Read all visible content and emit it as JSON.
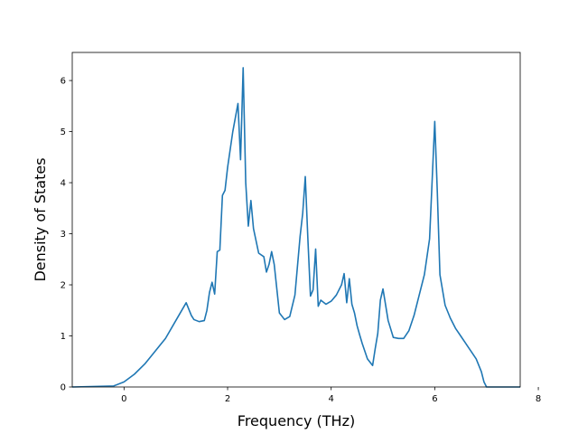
{
  "chart_data": {
    "type": "line",
    "title": "",
    "xlabel": "Frequency (THz)",
    "ylabel": "Density of States",
    "xlim": [
      -1.0,
      7.65
    ],
    "ylim": [
      0,
      6.55
    ],
    "xticks": [
      0,
      2,
      4,
      6,
      8
    ],
    "yticks": [
      0,
      1,
      2,
      3,
      4,
      5,
      6
    ],
    "grid": false,
    "legend": "none",
    "series": [
      {
        "color": "#1f77b4",
        "x": [
          -1.0,
          -0.2,
          0.0,
          0.2,
          0.4,
          0.6,
          0.8,
          1.0,
          1.2,
          1.3,
          1.35,
          1.45,
          1.55,
          1.6,
          1.65,
          1.7,
          1.75,
          1.8,
          1.85,
          1.9,
          1.95,
          2.0,
          2.1,
          2.2,
          2.25,
          2.3,
          2.35,
          2.4,
          2.45,
          2.5,
          2.6,
          2.7,
          2.75,
          2.8,
          2.85,
          2.9,
          3.0,
          3.1,
          3.2,
          3.3,
          3.4,
          3.45,
          3.5,
          3.55,
          3.6,
          3.65,
          3.7,
          3.75,
          3.8,
          3.9,
          4.0,
          4.1,
          4.2,
          4.25,
          4.3,
          4.35,
          4.4,
          4.45,
          4.5,
          4.55,
          4.6,
          4.7,
          4.8,
          4.85,
          4.9,
          4.95,
          5.0,
          5.1,
          5.2,
          5.3,
          5.4,
          5.5,
          5.6,
          5.7,
          5.8,
          5.9,
          6.0,
          6.05,
          6.1,
          6.2,
          6.3,
          6.4,
          6.5,
          6.6,
          6.7,
          6.8,
          6.9,
          6.95,
          7.0,
          7.2,
          7.65
        ],
        "y": [
          0,
          0.02,
          0.1,
          0.25,
          0.45,
          0.7,
          0.95,
          1.3,
          1.65,
          1.4,
          1.32,
          1.28,
          1.3,
          1.5,
          1.85,
          2.05,
          1.82,
          2.65,
          2.68,
          3.75,
          3.85,
          4.3,
          5.0,
          5.55,
          4.45,
          6.25,
          4.0,
          3.15,
          3.65,
          3.1,
          2.62,
          2.55,
          2.25,
          2.4,
          2.65,
          2.4,
          1.45,
          1.32,
          1.38,
          1.8,
          2.95,
          3.4,
          4.12,
          2.9,
          1.78,
          1.9,
          2.7,
          1.58,
          1.7,
          1.62,
          1.68,
          1.8,
          2.0,
          2.22,
          1.65,
          2.12,
          1.62,
          1.45,
          1.2,
          1.02,
          0.85,
          0.55,
          0.42,
          0.75,
          1.05,
          1.7,
          1.92,
          1.3,
          0.97,
          0.95,
          0.95,
          1.1,
          1.4,
          1.8,
          2.2,
          2.9,
          5.2,
          3.8,
          2.2,
          1.6,
          1.35,
          1.15,
          1.0,
          0.85,
          0.7,
          0.55,
          0.3,
          0.1,
          0,
          0,
          0
        ]
      }
    ]
  }
}
